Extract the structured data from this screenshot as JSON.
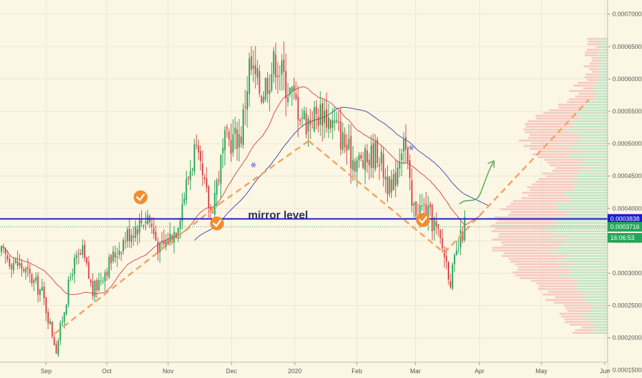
{
  "chart_data": {
    "type": "candlestick",
    "y_scale": "linear",
    "ylim": [
      0.000138,
      0.000722
    ],
    "x_labels": [
      "Sep",
      "Oct",
      "Nov",
      "Dec",
      "2020",
      "Feb",
      "Mar",
      "Apr",
      "May",
      "Jun"
    ],
    "y_ticks": [
      "0.0007000",
      "0.0006500",
      "0.0006000",
      "0.0005500",
      "0.0005000",
      "0.0004500",
      "0.0004000",
      "0.0003500",
      "0.0003000",
      "0.0002500",
      "0.0002000",
      "0.0001500"
    ],
    "annotation": "mirror level",
    "price_tags": [
      {
        "label": "0.0003838",
        "value": 0.0003838,
        "color": "#1c1ccf"
      },
      {
        "label": "0.0003716",
        "value": 0.0003716,
        "color": "#26a65b"
      },
      {
        "label": "16:06:53",
        "value": 0.0003543,
        "color": "#26a65b"
      }
    ],
    "horizontal_lines": [
      {
        "value": 0.0003838,
        "color": "#1c1ccf",
        "style": "solid"
      },
      {
        "value": 0.0003716,
        "color": "#26a65b",
        "style": "dotted"
      }
    ],
    "colors": {
      "background": "#fcf6e4",
      "up": "#26a65b",
      "down": "#d94a4a",
      "trendline": "#f2a35f",
      "ma_red": "#d94a4a",
      "ma_blue": "#4a4ab0",
      "checkmark": "#f28c2f",
      "forecast_arrow": "#4caf50",
      "volume_profile_red": "#f4c5c0",
      "volume_profile_green": "#bfe3c4"
    },
    "grid": true,
    "legend": "none"
  }
}
